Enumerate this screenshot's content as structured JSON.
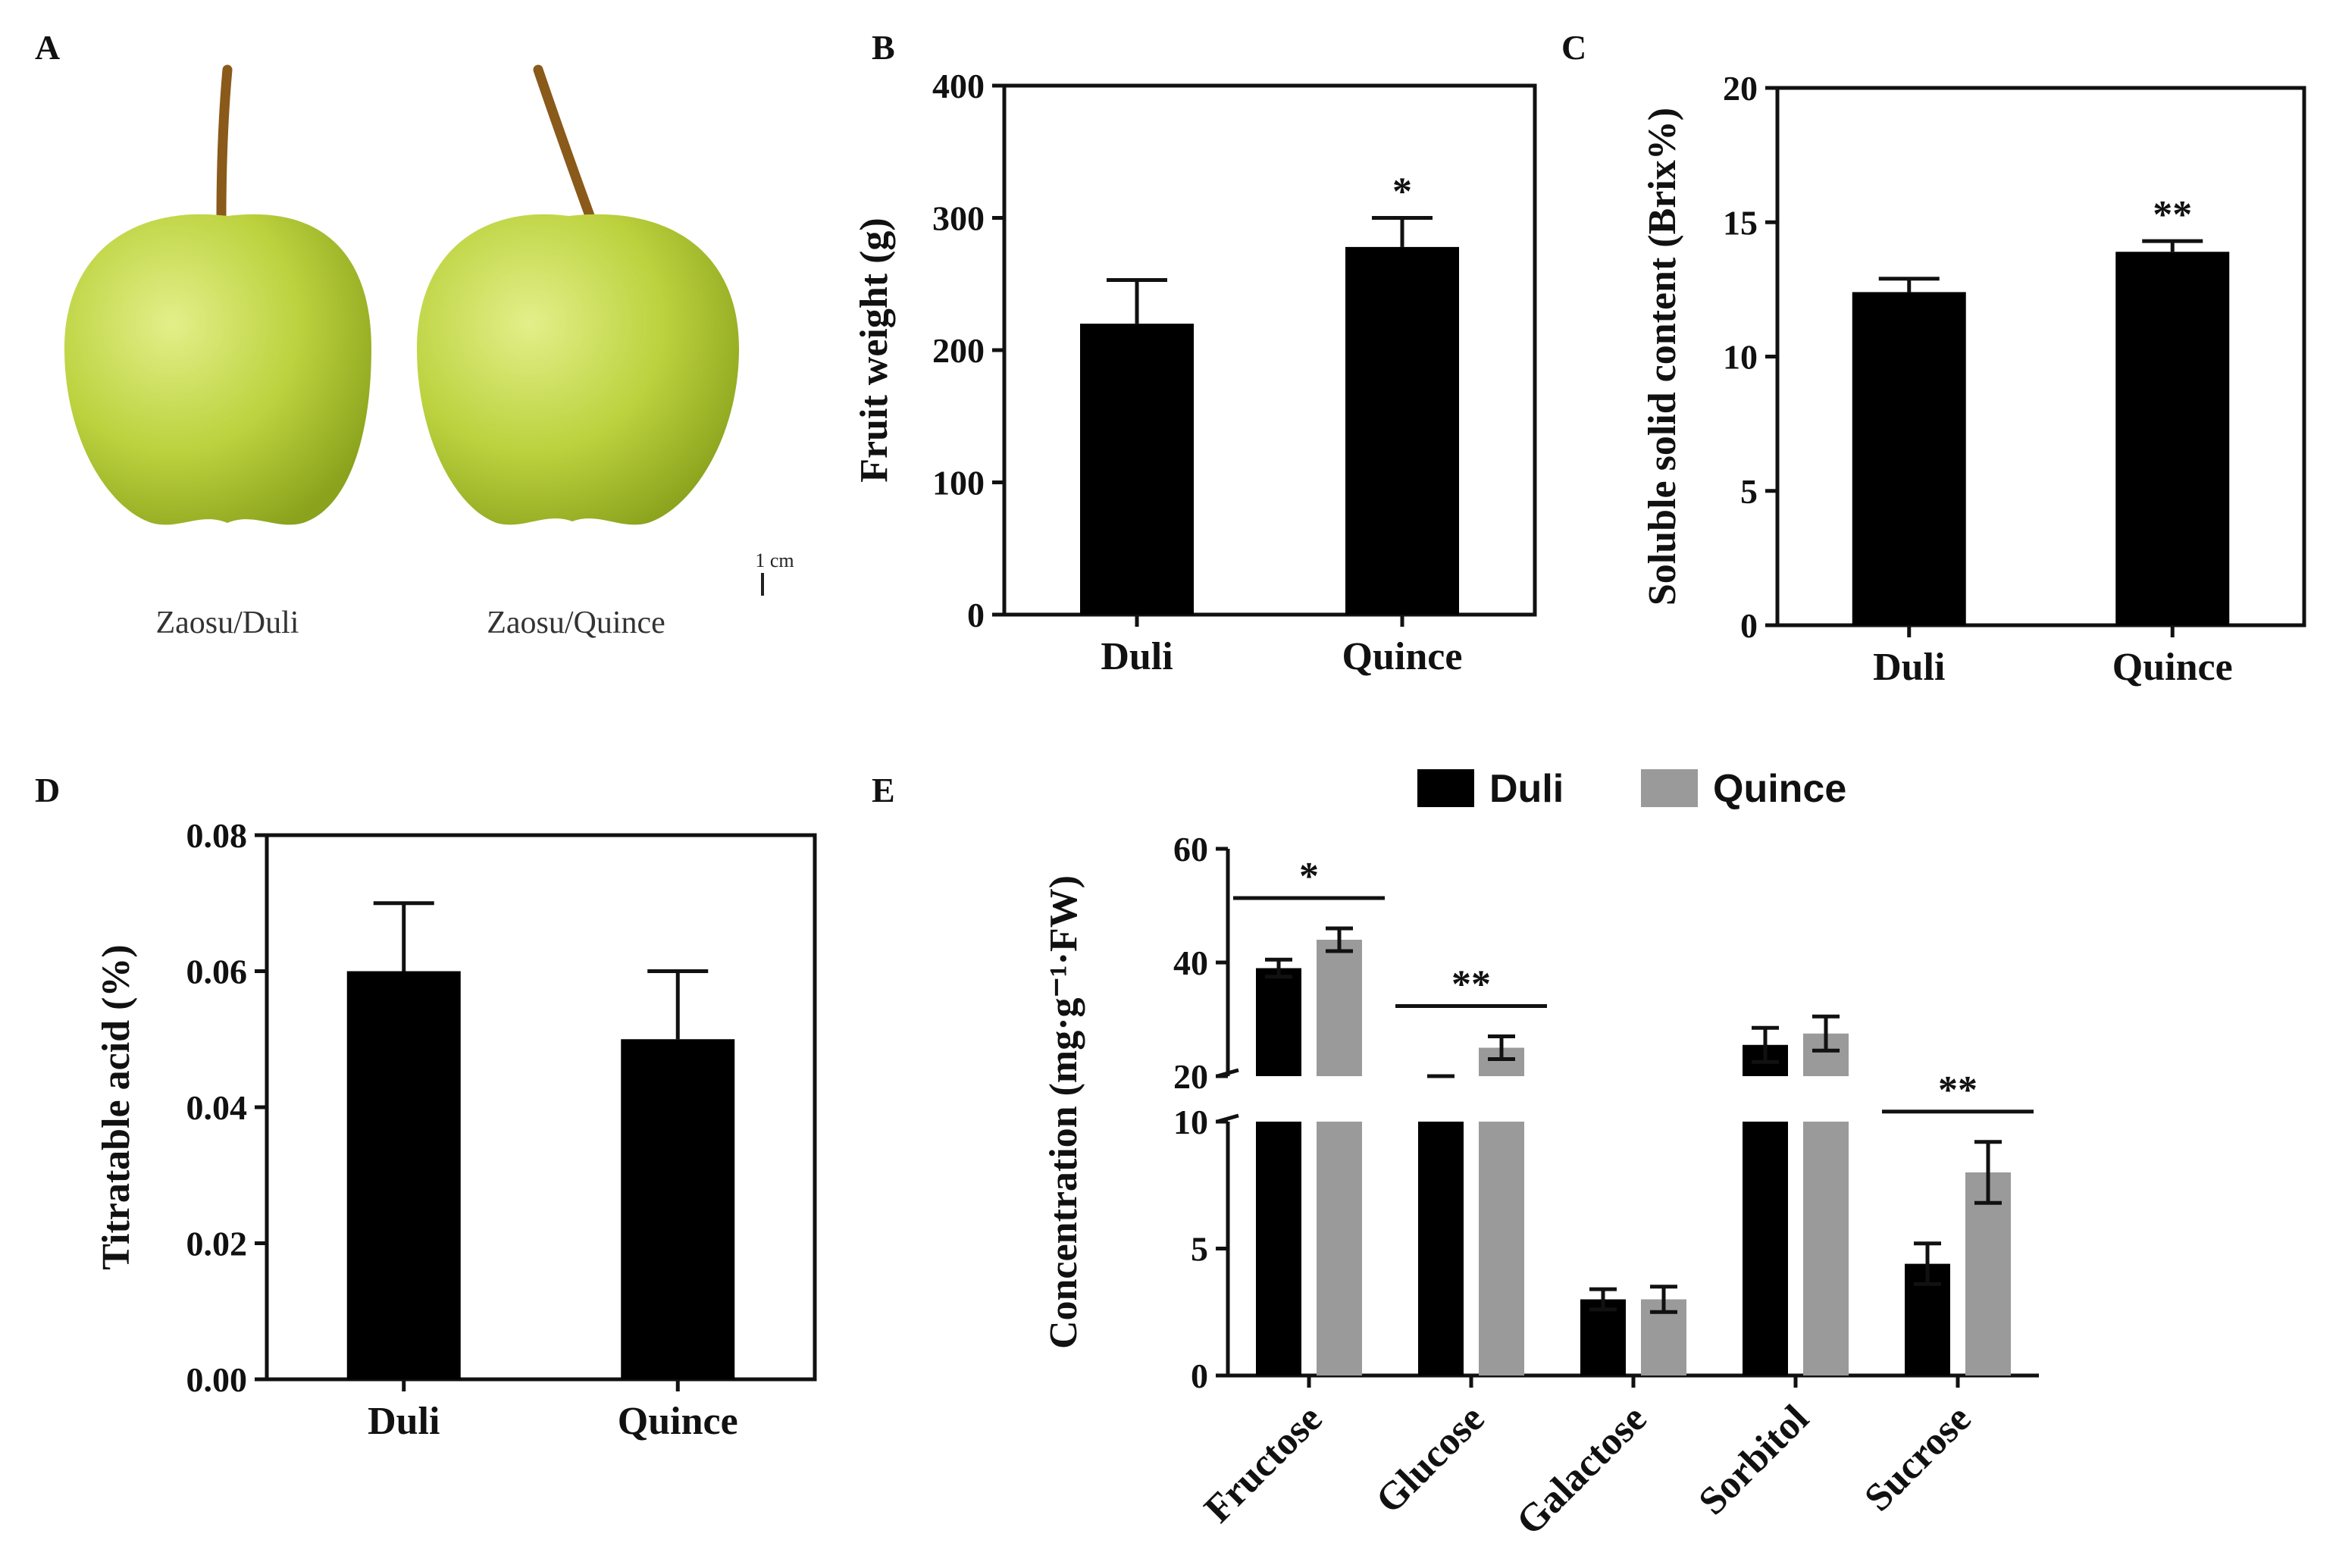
{
  "colors": {
    "duli": "#000000",
    "quince": "#9a9a9a",
    "fruit": "#b9d13a",
    "stem": "#8a5a1a"
  },
  "panelA": {
    "letter": "A",
    "captions": [
      "Zaosu/Duli",
      "Zaosu/Quince"
    ],
    "scale_bar": "1 cm"
  },
  "chart_data": [
    {
      "panel": "B",
      "type": "bar",
      "categories": [
        "Duli",
        "Quince"
      ],
      "values": [
        220,
        278
      ],
      "errors": [
        33,
        22
      ],
      "significance": [
        "",
        "*"
      ],
      "ylabel": "Fruit weight (g)",
      "ylim": [
        0,
        400
      ],
      "yticks": [
        "0",
        "100",
        "200",
        "300",
        "400"
      ]
    },
    {
      "panel": "C",
      "type": "bar",
      "categories": [
        "Duli",
        "Quince"
      ],
      "values": [
        12.4,
        13.9
      ],
      "errors": [
        0.5,
        0.4
      ],
      "significance": [
        "",
        "**"
      ],
      "ylabel": "Soluble solid content (Brix%)",
      "ylim": [
        0,
        20
      ],
      "yticks": [
        "0",
        "5",
        "10",
        "15",
        "20"
      ]
    },
    {
      "panel": "D",
      "type": "bar",
      "categories": [
        "Duli",
        "Quince"
      ],
      "values": [
        0.06,
        0.05
      ],
      "errors": [
        0.01,
        0.01
      ],
      "significance": [
        "",
        ""
      ],
      "ylabel": "Titratable acid (%)",
      "ylim": [
        0,
        0.08
      ],
      "yticks": [
        "0.00",
        "0.02",
        "0.04",
        "0.06",
        "0.08"
      ]
    },
    {
      "panel": "E",
      "type": "bar",
      "categories": [
        "Fructose",
        "Glucose",
        "Galactose",
        "Sorbitol",
        "Sucrose"
      ],
      "series": [
        {
          "name": "Duli",
          "values": [
            39,
            18,
            3,
            25.5,
            4.4
          ],
          "errors": [
            1.5,
            1.5,
            0.4,
            3,
            0.8
          ]
        },
        {
          "name": "Quince",
          "values": [
            44,
            25,
            3,
            27.5,
            8
          ],
          "errors": [
            2,
            2,
            0.5,
            3,
            1.2
          ]
        }
      ],
      "significance": [
        "*",
        "**",
        "",
        "",
        "**"
      ],
      "ylabel": "Concentration (mg·g⁻¹·FW)",
      "y_axis_break": [
        10,
        20
      ],
      "ylim": [
        0,
        60
      ],
      "yticks": [
        "0",
        "5",
        "10",
        "20",
        "40",
        "60"
      ],
      "legend": [
        "Duli",
        "Quince"
      ],
      "legend_position": "top"
    }
  ]
}
